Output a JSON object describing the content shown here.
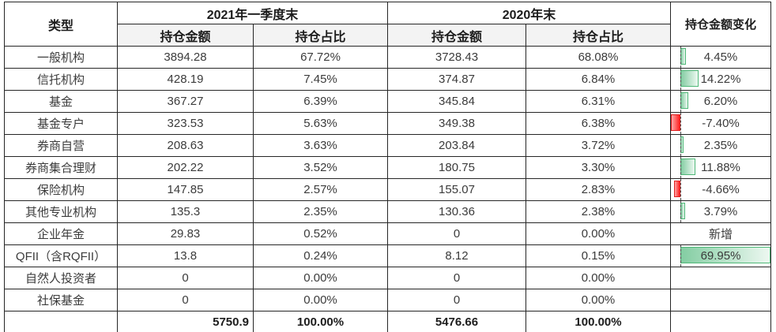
{
  "table": {
    "headers": {
      "type": "类型",
      "period_2021": "2021年一季度末",
      "period_2020": "2020年末",
      "change": "持仓金额变化",
      "amount": "持仓金额",
      "ratio": "持仓占比"
    },
    "rows": [
      {
        "label": "一般机构",
        "amount_2021": "3894.28",
        "ratio_2021": "67.72%",
        "amount_2020": "3728.43",
        "ratio_2020": "68.08%",
        "change_label": "4.45%",
        "change_value": 4.45,
        "has_axis": true
      },
      {
        "label": "信托机构",
        "amount_2021": "428.19",
        "ratio_2021": "7.45%",
        "amount_2020": "374.87",
        "ratio_2020": "6.84%",
        "change_label": "14.22%",
        "change_value": 14.22,
        "has_axis": true
      },
      {
        "label": "基金",
        "amount_2021": "367.27",
        "ratio_2021": "6.39%",
        "amount_2020": "345.84",
        "ratio_2020": "6.31%",
        "change_label": "6.20%",
        "change_value": 6.2,
        "has_axis": true
      },
      {
        "label": "基金专户",
        "amount_2021": "323.53",
        "ratio_2021": "5.63%",
        "amount_2020": "349.38",
        "ratio_2020": "6.38%",
        "change_label": "-7.40%",
        "change_value": -7.4,
        "has_axis": true
      },
      {
        "label": "券商自营",
        "amount_2021": "208.63",
        "ratio_2021": "3.63%",
        "amount_2020": "203.84",
        "ratio_2020": "3.72%",
        "change_label": "2.35%",
        "change_value": 2.35,
        "has_axis": true
      },
      {
        "label": "券商集合理财",
        "amount_2021": "202.22",
        "ratio_2021": "3.52%",
        "amount_2020": "180.75",
        "ratio_2020": "3.30%",
        "change_label": "11.88%",
        "change_value": 11.88,
        "has_axis": true
      },
      {
        "label": "保险机构",
        "amount_2021": "147.85",
        "ratio_2021": "2.57%",
        "amount_2020": "155.07",
        "ratio_2020": "2.83%",
        "change_label": "-4.66%",
        "change_value": -4.66,
        "has_axis": true
      },
      {
        "label": "其他专业机构",
        "amount_2021": "135.3",
        "ratio_2021": "2.35%",
        "amount_2020": "130.36",
        "ratio_2020": "2.38%",
        "change_label": "3.79%",
        "change_value": 3.79,
        "has_axis": true
      },
      {
        "label": "企业年金",
        "amount_2021": "29.83",
        "ratio_2021": "0.52%",
        "amount_2020": "0",
        "ratio_2020": "0.00%",
        "change_label": "新增",
        "change_value": null,
        "has_axis": false
      },
      {
        "label": "QFII（含RQFII）",
        "amount_2021": "13.8",
        "ratio_2021": "0.24%",
        "amount_2020": "8.12",
        "ratio_2020": "0.15%",
        "change_label": "69.95%",
        "change_value": 69.95,
        "has_axis": true
      },
      {
        "label": "自然人投资者",
        "amount_2021": "0",
        "ratio_2021": "0.00%",
        "amount_2020": "0",
        "ratio_2020": "0.00%",
        "change_label": "",
        "change_value": null,
        "has_axis": false
      },
      {
        "label": "社保基金",
        "amount_2021": "0",
        "ratio_2021": "0.00%",
        "amount_2020": "0",
        "ratio_2020": "0.00%",
        "change_label": "",
        "change_value": null,
        "has_axis": false
      }
    ],
    "total": {
      "label": "",
      "amount_2021": "5750.9",
      "ratio_2021": "100.00%",
      "amount_2020": "5476.66",
      "ratio_2020": "100.00%",
      "change_label": ""
    }
  },
  "databar": {
    "axis_min": -7.4,
    "axis_max": 69.95,
    "axis_color": "#4a4a4a",
    "positive_border": "#4fb878",
    "positive_fill_start": "#83cda2",
    "positive_fill_end": "#edf8f1",
    "negative_border": "#e01f1f",
    "negative_fill_start": "#ffa8a8",
    "negative_fill_end": "#ff1f1f"
  }
}
